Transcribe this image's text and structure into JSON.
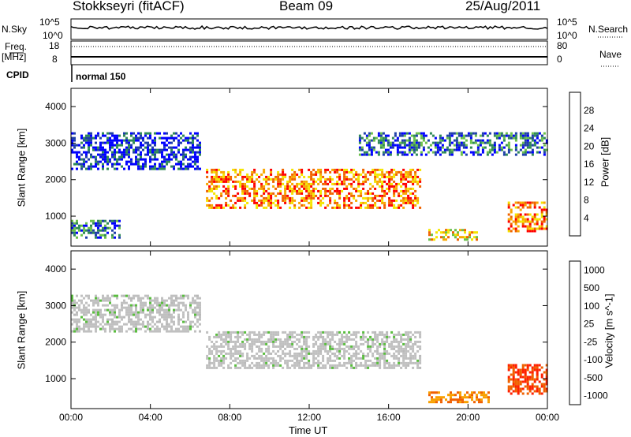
{
  "header": {
    "station": "Stokkseyri (fitACF)",
    "beam": "Beam 09",
    "date": "25/Aug/2011"
  },
  "panels": {
    "nsky_label": "N.Sky",
    "nsky_ticks": [
      "10^5",
      "10^0"
    ],
    "nsearch_label": "N.Search",
    "nsearch_ticks": [
      "10^5",
      "10^0"
    ],
    "freq_label": "Freq.",
    "freq_unit": "[MHz]",
    "freq_ticks": [
      "18",
      "8"
    ],
    "nave_label": "Nave",
    "nave_ticks": [
      "80",
      "0"
    ],
    "cpid_label": "CPID",
    "cpid_value": "normal 150"
  },
  "colors": {
    "power": [
      "#0000ff",
      "#1f3fa8",
      "#2f8a57",
      "#6bc04a",
      "#f4e600",
      "#f8a800",
      "#f06400",
      "#ff0000"
    ],
    "velocity": [
      "#1f3fa8",
      "#2f7c46",
      "#5abd3f",
      "#b9b9b9",
      "#c8c8c8",
      "#f8a000",
      "#f06000",
      "#ff2000"
    ],
    "ground_scatter": "#c0c0c0"
  },
  "chart_data": [
    {
      "type": "heatmap",
      "quantity": "Power",
      "ylabel": "Slant Range [km]",
      "xlabel": "Time UT",
      "xlim": [
        "00:00",
        "24:00"
      ],
      "ylim": [
        180,
        4500
      ],
      "yticks": [
        "1000",
        "2000",
        "3000",
        "4000"
      ],
      "xticks": [
        "00:00",
        "04:00",
        "08:00",
        "12:00",
        "16:00",
        "20:00",
        "00:00"
      ],
      "colorbar_label": "Power [dB]",
      "colorbar_ticks": [
        "28",
        "24",
        "20",
        "16",
        "12",
        "8",
        "4"
      ],
      "colorbar_range": [
        0,
        32
      ],
      "regions": [
        {
          "t": [
            6.8,
            17.6
          ],
          "r": [
            1250,
            2300
          ],
          "peak_db": 26
        },
        {
          "t": [
            0.0,
            6.5
          ],
          "r": [
            2300,
            3300
          ],
          "peak_db": 8
        },
        {
          "t": [
            14.5,
            24.0
          ],
          "r": [
            2700,
            3300
          ],
          "peak_db": 10
        },
        {
          "t": [
            0.0,
            2.5
          ],
          "r": [
            400,
            900
          ],
          "peak_db": 10
        },
        {
          "t": [
            18.0,
            20.5
          ],
          "r": [
            350,
            650
          ],
          "peak_db": 22
        },
        {
          "t": [
            22.0,
            24.0
          ],
          "r": [
            600,
            1400
          ],
          "peak_db": 28
        }
      ]
    },
    {
      "type": "heatmap",
      "quantity": "Velocity",
      "ylabel": "Slant Range [km]",
      "xlabel": "Time UT",
      "xlim": [
        "00:00",
        "24:00"
      ],
      "ylim": [
        180,
        4500
      ],
      "yticks": [
        "1000",
        "2000",
        "3000",
        "4000"
      ],
      "xticks": [
        "00:00",
        "04:00",
        "08:00",
        "12:00",
        "16:00",
        "20:00",
        "00:00"
      ],
      "colorbar_label": "Velocity [m s^-1]",
      "colorbar_ticks": [
        "1000",
        "500",
        "100",
        "25",
        "-25",
        "-100",
        "-500",
        "-1000"
      ],
      "regions": [
        {
          "t": [
            6.8,
            17.6
          ],
          "r": [
            1300,
            2300
          ],
          "velocity": 0
        },
        {
          "t": [
            0.0,
            6.5
          ],
          "r": [
            2300,
            3300
          ],
          "velocity": 0
        },
        {
          "t": [
            18.0,
            21.0
          ],
          "r": [
            350,
            650
          ],
          "velocity": -300
        },
        {
          "t": [
            22.0,
            24.0
          ],
          "r": [
            600,
            1400
          ],
          "velocity": -600
        }
      ]
    }
  ],
  "axis_title": "Time UT"
}
